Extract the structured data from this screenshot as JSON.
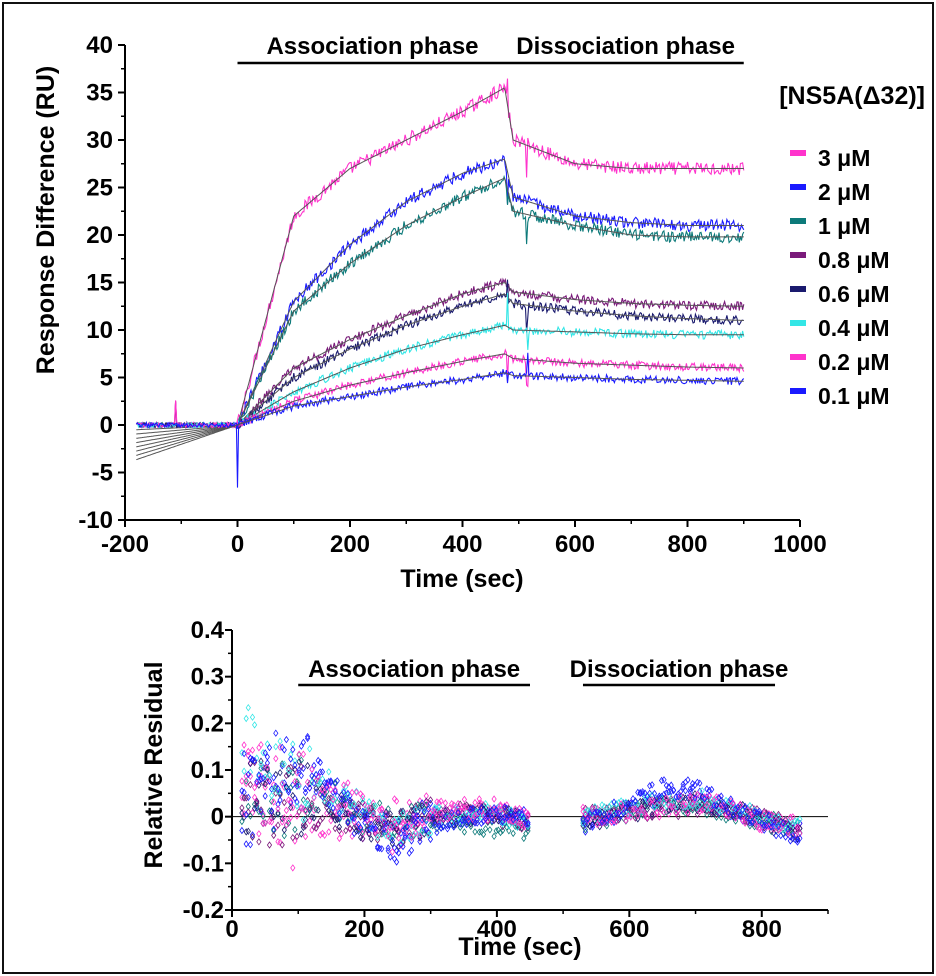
{
  "chart_data": [
    {
      "type": "line",
      "xlabel": "Time (sec)",
      "ylabel": "Response Difference (RU)",
      "xlim": [
        -200,
        1000
      ],
      "ylim": [
        -10,
        40
      ],
      "xticks": [
        "-200",
        "0",
        "200",
        "400",
        "600",
        "800",
        "1000"
      ],
      "yticks": [
        "-10",
        "-5",
        "0",
        "5",
        "10",
        "15",
        "20",
        "25",
        "30",
        "35",
        "40"
      ],
      "annotations": [
        {
          "text": "Association phase",
          "x_range": [
            0,
            480
          ]
        },
        {
          "text": "Dissociation phase",
          "x_range": [
            480,
            900
          ]
        }
      ],
      "legend_title": "[NS5A(Δ32)]",
      "legend_position": "right",
      "fit_color": "#555555",
      "series": [
        {
          "name": "3 μM",
          "color": "#ff33cc",
          "x": [
            -180,
            0,
            100,
            200,
            300,
            400,
            475,
            490,
            600,
            700,
            800,
            900
          ],
          "values": [
            0,
            0,
            22,
            27,
            30,
            33,
            35.5,
            30,
            27.5,
            27,
            27,
            27
          ]
        },
        {
          "name": "2 μM",
          "color": "#1a1aff",
          "x": [
            -180,
            0,
            100,
            200,
            300,
            400,
            475,
            490,
            600,
            700,
            800,
            900
          ],
          "values": [
            0,
            0,
            13,
            19,
            23.5,
            26.5,
            28,
            24,
            22,
            21.3,
            21,
            21
          ]
        },
        {
          "name": "1 μM",
          "color": "#0d7a7a",
          "x": [
            -180,
            0,
            100,
            200,
            300,
            400,
            475,
            490,
            600,
            700,
            800,
            900
          ],
          "values": [
            0,
            0,
            12,
            17,
            21,
            24,
            26,
            22.5,
            21,
            20,
            19.8,
            19.8
          ]
        },
        {
          "name": "0.8 μM",
          "color": "#7a1a7a",
          "x": [
            -180,
            0,
            100,
            200,
            300,
            400,
            475,
            490,
            600,
            700,
            800,
            900
          ],
          "values": [
            0,
            0,
            6,
            9,
            11.5,
            13.8,
            15,
            14,
            13.2,
            12.8,
            12.6,
            12.5
          ]
        },
        {
          "name": "0.6 μM",
          "color": "#1a1a6e",
          "x": [
            -180,
            0,
            100,
            200,
            300,
            400,
            475,
            490,
            600,
            700,
            800,
            900
          ],
          "values": [
            0,
            0,
            5,
            8,
            10.5,
            12.5,
            13.8,
            12.8,
            12,
            11.5,
            11.2,
            11
          ]
        },
        {
          "name": "0.4 μM",
          "color": "#33e6e6",
          "x": [
            -180,
            0,
            100,
            200,
            300,
            400,
            475,
            490,
            600,
            700,
            800,
            900
          ],
          "values": [
            0,
            0,
            3.5,
            6,
            8,
            9.5,
            10.5,
            10,
            9.8,
            9.6,
            9.5,
            9.5
          ]
        },
        {
          "name": "0.2 μM",
          "color": "#ff33cc",
          "x": [
            -180,
            0,
            100,
            200,
            300,
            400,
            475,
            490,
            600,
            700,
            800,
            900
          ],
          "values": [
            0,
            0,
            2.5,
            4.2,
            5.5,
            6.7,
            7.5,
            7,
            6.5,
            6.3,
            6.1,
            6
          ]
        },
        {
          "name": "0.1 μM",
          "color": "#1a1aff",
          "x": [
            -180,
            0,
            100,
            200,
            300,
            400,
            475,
            490,
            600,
            700,
            800,
            900
          ],
          "values": [
            0,
            0,
            2,
            3,
            4,
            4.8,
            5.5,
            5.2,
            5,
            4.8,
            4.7,
            4.6
          ]
        }
      ]
    },
    {
      "type": "scatter",
      "xlabel": "Time (sec)",
      "ylabel": "Relative Residual",
      "xlim": [
        0,
        900
      ],
      "ylim": [
        -0.2,
        0.4
      ],
      "xticks": [
        "0",
        "200",
        "400",
        "600",
        "800"
      ],
      "yticks": [
        "-0.2",
        "-0.1",
        "0",
        "0.1",
        "0.2",
        "0.3",
        "0.4"
      ],
      "reference_line_y": 0,
      "annotations": [
        {
          "text": "Association phase",
          "x_range": [
            100,
            450
          ]
        },
        {
          "text": "Dissociation phase",
          "x_range": [
            530,
            820
          ]
        }
      ],
      "series": [
        {
          "name": "3 μM",
          "color": "#ff33cc",
          "trend": {
            "x": [
              20,
              60,
              100,
              150,
              200,
              250,
              300,
              350,
              400,
              450,
              530,
              600,
              650,
              700,
              750,
              800,
              850
            ],
            "y": [
              0.1,
              -0.02,
              -0.02,
              -0.01,
              -0.01,
              0,
              0.01,
              0.02,
              0.02,
              -0.01,
              0,
              0.01,
              0.02,
              0.03,
              0.02,
              -0.01,
              -0.02
            ]
          }
        },
        {
          "name": "2 μM",
          "color": "#1a1aff",
          "trend": {
            "x": [
              20,
              60,
              100,
              150,
              200,
              250,
              300,
              350,
              400,
              450,
              530,
              600,
              650,
              700,
              750,
              800,
              850
            ],
            "y": [
              0.02,
              0.05,
              0.1,
              0.05,
              -0.02,
              -0.04,
              0,
              0,
              0.01,
              0,
              -0.02,
              0.02,
              0.05,
              0.05,
              0.01,
              -0.01,
              -0.03
            ]
          }
        },
        {
          "name": "1 μM",
          "color": "#0d7a7a",
          "trend": {
            "x": [
              20,
              60,
              100,
              150,
              200,
              250,
              300,
              350,
              400,
              450,
              530,
              600,
              650,
              700,
              750,
              800,
              850
            ],
            "y": [
              0.03,
              0.04,
              0.05,
              0.04,
              0,
              -0.02,
              -0.01,
              -0.02,
              -0.03,
              -0.03,
              -0.01,
              0.01,
              0.02,
              0.03,
              0.01,
              -0.01,
              -0.02
            ]
          }
        },
        {
          "name": "0.8 μM",
          "color": "#7a1a7a",
          "trend": {
            "x": [
              20,
              60,
              100,
              150,
              200,
              250,
              300,
              350,
              400,
              450,
              530,
              600,
              650,
              700,
              750,
              800,
              850
            ],
            "y": [
              0.05,
              0.02,
              0.02,
              0.01,
              -0.01,
              -0.02,
              0,
              0.01,
              0,
              -0.01,
              0,
              0.01,
              0.02,
              0.02,
              0.01,
              0,
              -0.02
            ]
          }
        },
        {
          "name": "0.6 μM",
          "color": "#1a1a6e",
          "trend": {
            "x": [
              20,
              60,
              100,
              150,
              200,
              250,
              300,
              350,
              400,
              450,
              530,
              600,
              650,
              700,
              750,
              800,
              850
            ],
            "y": [
              0.03,
              0.05,
              0.04,
              0.02,
              -0.01,
              -0.03,
              0,
              0,
              0.01,
              -0.01,
              -0.01,
              0.01,
              0.03,
              0.03,
              0.02,
              -0.01,
              -0.03
            ]
          }
        },
        {
          "name": "0.4 μM",
          "color": "#33e6e6",
          "trend": {
            "x": [
              20,
              60,
              100,
              150,
              200,
              250,
              300,
              350,
              400,
              450,
              530,
              600,
              650,
              700,
              750,
              800,
              850
            ],
            "y": [
              0.15,
              0.1,
              0.08,
              0.06,
              0,
              -0.03,
              0,
              0.01,
              0.01,
              -0.02,
              0,
              0.02,
              0.03,
              0.04,
              0.02,
              0,
              -0.02
            ]
          }
        },
        {
          "name": "0.2 μM",
          "color": "#ff33cc",
          "trend": {
            "x": [
              20,
              60,
              100,
              150,
              200,
              250,
              300,
              350,
              400,
              450,
              530,
              600,
              650,
              700,
              750,
              800,
              850
            ],
            "y": [
              0.08,
              0.06,
              0.06,
              0.07,
              0.01,
              -0.05,
              0,
              0.01,
              0.01,
              -0.01,
              0,
              0.01,
              0.02,
              0.03,
              0.02,
              -0.01,
              -0.02
            ]
          }
        },
        {
          "name": "0.1 μM",
          "color": "#1a1aff",
          "trend": {
            "x": [
              20,
              60,
              100,
              150,
              200,
              250,
              300,
              350,
              400,
              450,
              530,
              600,
              650,
              700,
              750,
              800,
              850
            ],
            "y": [
              0.05,
              0.1,
              0.12,
              0.06,
              -0.02,
              -0.06,
              -0.02,
              0,
              0.01,
              0,
              -0.02,
              0.03,
              0.06,
              0.06,
              0.02,
              -0.01,
              -0.04
            ]
          }
        }
      ]
    }
  ]
}
